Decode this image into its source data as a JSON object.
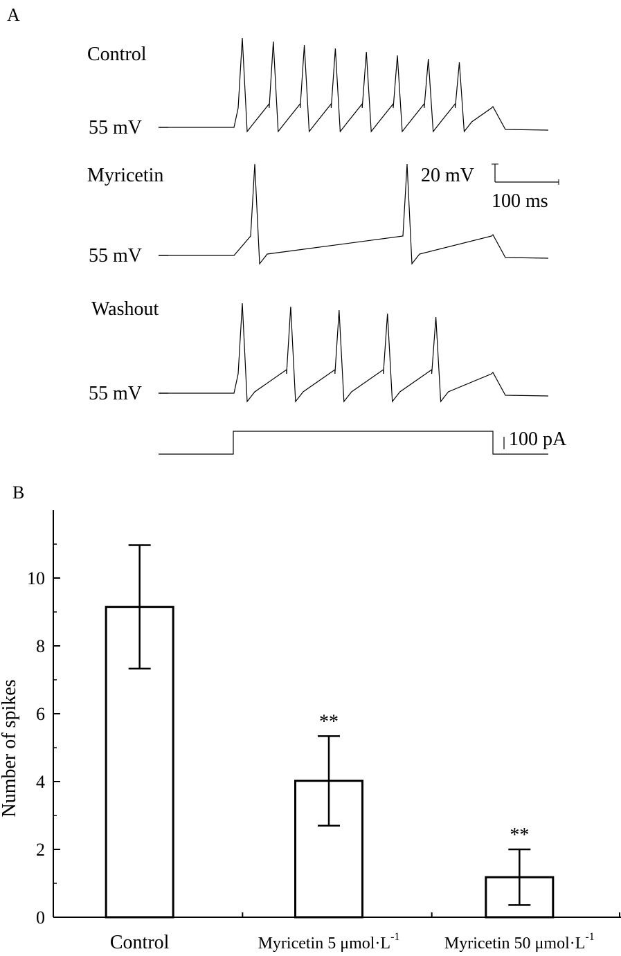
{
  "panel_a": {
    "label": "A",
    "traces": [
      {
        "name": "Control",
        "baseline_label": "55 mV",
        "spike_count": 8
      },
      {
        "name": "Myricetin",
        "baseline_label": "55 mV",
        "spike_count": 2
      },
      {
        "name": "Washout",
        "baseline_label": "55 mV",
        "spike_count": 5
      }
    ],
    "scale_bar": {
      "voltage": "20 mV",
      "time": "100 ms"
    },
    "stimulus": {
      "label": "100 pA"
    }
  },
  "panel_b": {
    "label": "B"
  },
  "chart_data": {
    "type": "bar",
    "title": "",
    "xlabel": "",
    "ylabel": "Number of spikes",
    "ylim": [
      0,
      12
    ],
    "yticks": [
      0,
      2,
      4,
      6,
      8,
      10
    ],
    "categories": [
      "Control",
      "Myricetin 5 μmol·L",
      "Myricetin 50 μmol·L"
    ],
    "category_superscripts": [
      "",
      "-1",
      "-1"
    ],
    "values": [
      9.15,
      4.02,
      1.18
    ],
    "errors": [
      1.82,
      1.32,
      0.82
    ],
    "annotations": [
      "",
      "**",
      "**"
    ]
  }
}
